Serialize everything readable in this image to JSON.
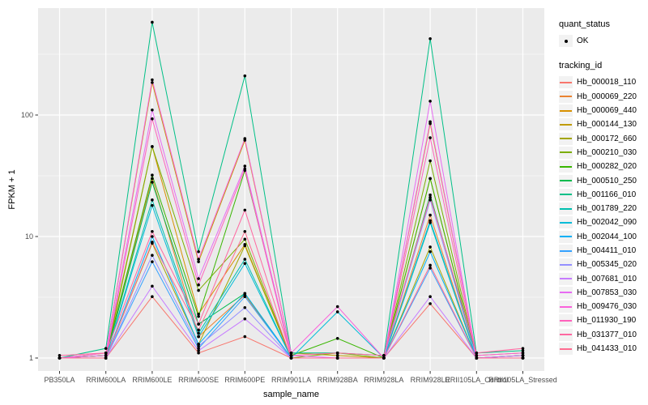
{
  "axes": {
    "x_title": "sample_name",
    "y_title": "FPKM + 1"
  },
  "legend": {
    "quant_status": {
      "title": "quant_status",
      "items": [
        {
          "label": "OK",
          "symbol": "black-point"
        }
      ]
    },
    "tracking": {
      "title": "tracking_id"
    }
  },
  "panel": {
    "bg": "#EBEBEB",
    "grid_color": "#FFFFFF",
    "tick_color": "#333333",
    "tick_label_color": "#4D4D4D"
  },
  "chart_data": {
    "type": "line",
    "title": "",
    "xlabel": "sample_name",
    "ylabel": "FPKM + 1",
    "y_scale": "log10",
    "y_ticks": [
      1,
      10,
      100
    ],
    "ylim": [
      0.78,
      760
    ],
    "grid": "on",
    "legend_position": "right",
    "point_shape": "circle",
    "point_color": "#000000",
    "categories": [
      "PB350LA",
      "RRIM600LA",
      "RRIM600LE",
      "RRIM600SE",
      "RRIM600PE",
      "RRIM901LA",
      "RRIM928BA",
      "RRIM928LA",
      "RRIM928LE",
      "RRII105LA_Control",
      "RRII105LA_Stressed"
    ],
    "series": [
      {
        "name": "Hb_000018_110",
        "color": "#F8766D",
        "values": [
          1.0,
          1.0,
          3.2,
          1.1,
          1.5,
          1.0,
          1.0,
          1.0,
          2.8,
          1.0,
          1.0
        ]
      },
      {
        "name": "Hb_000069_220",
        "color": "#EA8331",
        "values": [
          1.0,
          1.05,
          30,
          1.5,
          3.3,
          1.0,
          1.0,
          1.0,
          15,
          1.0,
          1.05
        ]
      },
      {
        "name": "Hb_000069_440",
        "color": "#D89000",
        "values": [
          1.0,
          1.0,
          55,
          2.3,
          8.6,
          1.0,
          1.0,
          1.0,
          30,
          1.0,
          1.0
        ]
      },
      {
        "name": "Hb_000144_130",
        "color": "#C09B00",
        "values": [
          1.0,
          1.1,
          185,
          6.2,
          62,
          1.1,
          1.05,
          1.0,
          85,
          1.05,
          1.1
        ]
      },
      {
        "name": "Hb_000172_660",
        "color": "#A3A500",
        "values": [
          1.0,
          1.0,
          8.8,
          1.3,
          8.4,
          1.0,
          1.0,
          1.0,
          8.2,
          1.0,
          1.0
        ]
      },
      {
        "name": "Hb_000210_030",
        "color": "#7CAE00",
        "values": [
          1.0,
          1.05,
          55,
          3.6,
          9.5,
          1.0,
          1.1,
          1.0,
          42,
          1.0,
          1.0
        ]
      },
      {
        "name": "Hb_000282_020",
        "color": "#39B600",
        "values": [
          1.0,
          1.05,
          32,
          2.2,
          35,
          1.05,
          1.45,
          1.0,
          30,
          1.0,
          1.05
        ]
      },
      {
        "name": "Hb_000510_250",
        "color": "#00BB4E",
        "values": [
          1.0,
          1.0,
          28,
          1.9,
          3.4,
          1.0,
          1.0,
          1.0,
          22,
          1.0,
          1.0
        ]
      },
      {
        "name": "Hb_001166_010",
        "color": "#00C087",
        "values": [
          1.0,
          1.2,
          580,
          7.5,
          210,
          1.1,
          1.1,
          1.05,
          425,
          1.1,
          1.15
        ]
      },
      {
        "name": "Hb_001789_220",
        "color": "#00C0AF",
        "values": [
          1.0,
          1.0,
          20,
          1.6,
          6.5,
          1.0,
          1.0,
          1.0,
          13,
          1.0,
          1.0
        ]
      },
      {
        "name": "Hb_002042_090",
        "color": "#00BCD8",
        "values": [
          1.0,
          1.0,
          18,
          1.5,
          6.0,
          1.0,
          2.4,
          1.0,
          13.5,
          1.0,
          1.05
        ]
      },
      {
        "name": "Hb_002044_100",
        "color": "#00B0F6",
        "values": [
          1.0,
          1.0,
          10,
          1.3,
          3.4,
          1.0,
          1.0,
          1.0,
          7.5,
          1.0,
          1.0
        ]
      },
      {
        "name": "Hb_004411_010",
        "color": "#35A2FF",
        "values": [
          1.0,
          1.0,
          6.2,
          1.2,
          3.2,
          1.0,
          1.0,
          1.0,
          5.5,
          1.0,
          1.0
        ]
      },
      {
        "name": "Hb_005345_020",
        "color": "#9590FF",
        "values": [
          1.0,
          1.0,
          7.0,
          1.25,
          2.6,
          1.0,
          1.0,
          1.0,
          20,
          1.0,
          1.0
        ]
      },
      {
        "name": "Hb_007681_010",
        "color": "#C77CFF",
        "values": [
          1.0,
          1.0,
          3.9,
          1.15,
          2.1,
          1.0,
          1.0,
          1.0,
          3.2,
          1.0,
          1.0
        ]
      },
      {
        "name": "Hb_007853_030",
        "color": "#E76BF3",
        "values": [
          1.0,
          1.05,
          110,
          4.5,
          38,
          1.05,
          1.0,
          1.0,
          130,
          1.0,
          1.05
        ]
      },
      {
        "name": "Hb_009476_030",
        "color": "#FA62DB",
        "values": [
          1.0,
          1.1,
          195,
          6.5,
          64,
          1.1,
          2.65,
          1.0,
          88,
          1.05,
          1.1
        ]
      },
      {
        "name": "Hb_011930_190",
        "color": "#FF62BC",
        "values": [
          1.0,
          1.0,
          93,
          4.0,
          36,
          1.0,
          1.0,
          1.0,
          65,
          1.0,
          1.0
        ]
      },
      {
        "name": "Hb_031377_010",
        "color": "#FF68A1",
        "values": [
          1.05,
          1.1,
          11,
          1.9,
          16.5,
          1.05,
          1.1,
          1.05,
          21,
          1.1,
          1.2
        ]
      },
      {
        "name": "Hb_041433_010",
        "color": "#FF6C91",
        "values": [
          1.0,
          1.0,
          9.0,
          1.7,
          11,
          1.0,
          1.0,
          1.0,
          5.8,
          1.0,
          1.0
        ]
      }
    ]
  }
}
